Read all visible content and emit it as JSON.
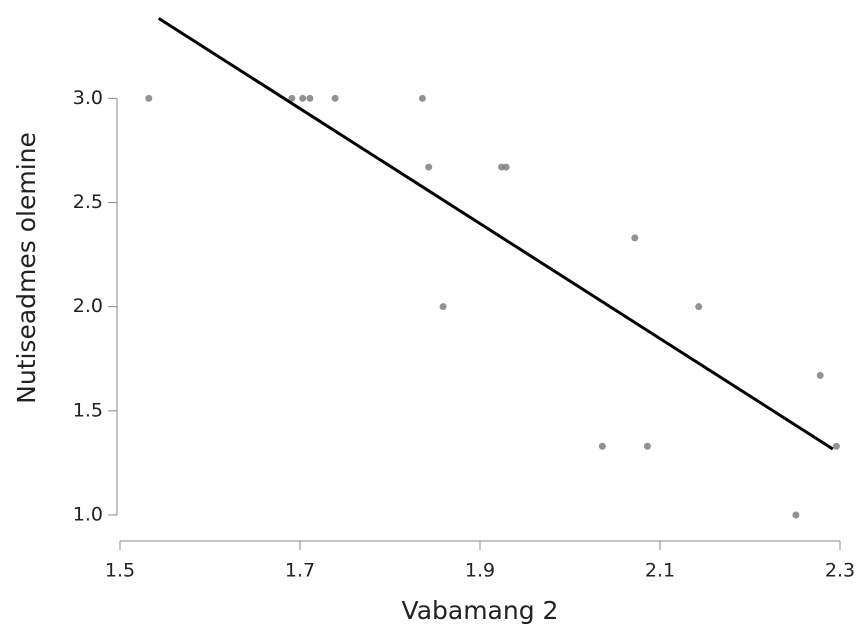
{
  "chart_data": {
    "type": "scatter",
    "xlabel": "Vabamang 2",
    "ylabel": "Nutiseadmes olemine",
    "xlim": [
      1.5,
      2.3
    ],
    "ylim": [
      0.88,
      3.4
    ],
    "xticks": [
      1.5,
      1.7,
      1.9,
      2.1,
      2.3
    ],
    "yticks": [
      {
        "value": 1,
        "label": "1.0"
      },
      1.5,
      {
        "value": 2,
        "label": "2.0"
      },
      2.5,
      {
        "value": 3,
        "label": "3.0"
      }
    ],
    "series": [
      {
        "type": "scatter",
        "color": "#7f7f7f",
        "x": [
          1.532,
          1.691,
          1.703,
          1.711,
          1.739,
          1.836,
          1.843,
          1.859,
          1.924,
          1.929,
          2.036,
          2.072,
          2.086,
          2.143,
          2.251,
          2.278,
          2.296
        ],
        "values": [
          3.0,
          3.0,
          3.0,
          3.0,
          3.0,
          3.0,
          2.67,
          2.0,
          2.67,
          2.67,
          1.33,
          2.33,
          1.33,
          2.0,
          1.0,
          1.67,
          1.33
        ]
      },
      {
        "type": "line",
        "color": "#000000",
        "x": [
          1.543,
          2.292
        ],
        "values": [
          3.384,
          1.317
        ]
      }
    ]
  }
}
